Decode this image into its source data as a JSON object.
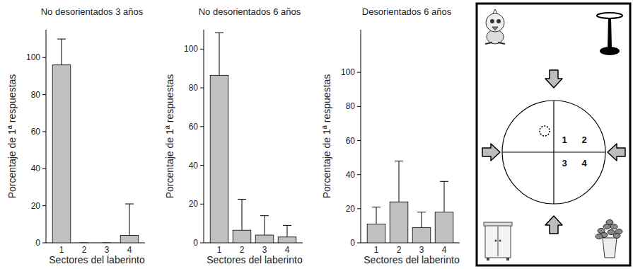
{
  "chart_data": [
    {
      "type": "bar",
      "title": "No desorientados 3 años",
      "xlabel": "Sectores del laberinto",
      "ylabel": "Porcentaje de 1ª respuestas",
      "categories": [
        "1",
        "2",
        "3",
        "4"
      ],
      "values": [
        96,
        0,
        0,
        4
      ],
      "errors": [
        14,
        0,
        0,
        17
      ],
      "color": "#c0c0c0",
      "ylim": [
        0,
        115
      ],
      "yticks": [
        0,
        20,
        40,
        60,
        80,
        100
      ]
    },
    {
      "type": "bar",
      "title": "No desorientados 6 años",
      "xlabel": "Sectores del laberinto",
      "ylabel": "Porcentaje de 1ª respuestas",
      "categories": [
        "1",
        "2",
        "3",
        "4"
      ],
      "values": [
        86.5,
        6.5,
        4,
        3
      ],
      "errors": [
        22,
        16,
        10,
        6
      ],
      "color": "#c0c0c0",
      "ylim": [
        0,
        110
      ],
      "yticks": [
        0,
        20,
        40,
        60,
        80,
        100
      ]
    },
    {
      "type": "bar",
      "title": "Desorientados 6 años",
      "xlabel": "Sectores del laberinto",
      "ylabel": "Porcentaje de 1ª respuestas",
      "categories": [
        "1",
        "2",
        "3",
        "4"
      ],
      "values": [
        11,
        24,
        9,
        18
      ],
      "errors": [
        10,
        24,
        9,
        18
      ],
      "color": "#c0c0c0",
      "ylim": [
        0,
        125
      ],
      "yticks": [
        0,
        20,
        40,
        60,
        80,
        100
      ]
    }
  ],
  "diagram": {
    "sector_labels": [
      "1",
      "2",
      "3",
      "4"
    ]
  }
}
